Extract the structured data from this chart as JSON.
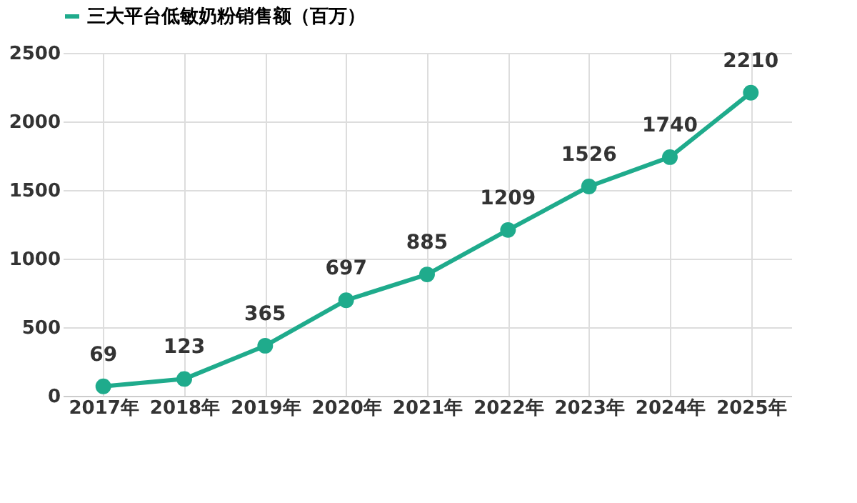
{
  "chart_data": {
    "type": "line",
    "categories": [
      "2017年",
      "2018年",
      "2019年",
      "2020年",
      "2021年",
      "2022年",
      "2023年",
      "2024年",
      "2025年"
    ],
    "series": [
      {
        "name": "三大平台低敏奶粉销售额（百万）",
        "color": "#1fab8c",
        "values": [
          69,
          123,
          365,
          697,
          885,
          1209,
          1526,
          1740,
          2210
        ]
      }
    ],
    "ylim": [
      0,
      2500
    ],
    "yticks": [
      0,
      500,
      1000,
      1500,
      2000,
      2500
    ],
    "grid": true,
    "legend": "top",
    "marker": "circle",
    "line_style": "solid",
    "data_labels": true
  }
}
